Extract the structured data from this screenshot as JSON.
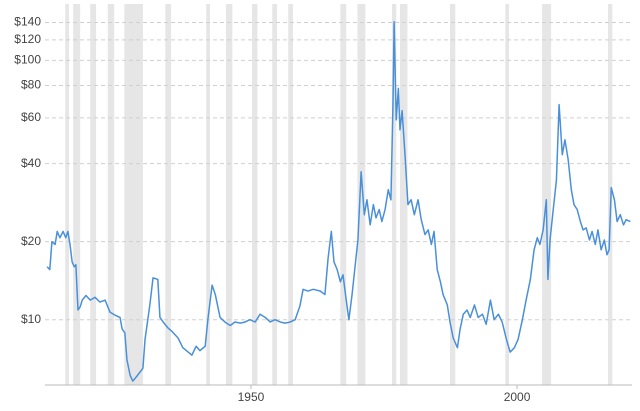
{
  "chart_data": {
    "type": "line",
    "color": "#4a90d9",
    "band_color": "#e6e6e6",
    "log_y": true,
    "grid": true,
    "xlim": [
      1911.3,
      2021.6
    ],
    "xticks": [
      1950,
      2000
    ],
    "ylim": [
      5.6,
      165
    ],
    "yticks": [
      {
        "value": 10,
        "label": "$10"
      },
      {
        "value": 20,
        "label": "$20"
      },
      {
        "value": 40,
        "label": "$40"
      },
      {
        "value": 60,
        "label": "$60"
      },
      {
        "value": 80,
        "label": "$80"
      },
      {
        "value": 100,
        "label": "$100"
      },
      {
        "value": 120,
        "label": "$120"
      },
      {
        "value": 140,
        "label": "$140"
      }
    ],
    "recessions": [
      [
        1915.1,
        1915.8
      ],
      [
        1916.6,
        1917.9
      ],
      [
        1919.8,
        1920.9
      ],
      [
        1923.1,
        1924.3
      ],
      [
        1926.2,
        1929.7
      ],
      [
        1933.9,
        1935.0
      ],
      [
        1941.6,
        1942.3
      ],
      [
        1945.3,
        1946.5
      ],
      [
        1950.2,
        1951.2
      ],
      [
        1954.0,
        1954.9
      ],
      [
        1957.0,
        1957.9
      ],
      [
        1966.8,
        1967.9
      ],
      [
        1970.0,
        1971.5
      ],
      [
        1976.5,
        1977.3
      ],
      [
        1978.0,
        1979.4
      ],
      [
        1987.4,
        1988.4
      ],
      [
        1997.8,
        1998.5
      ],
      [
        2004.7,
        2006.4
      ],
      [
        2017.1,
        2017.9
      ]
    ],
    "x": [
      1911.7,
      1912.2,
      1912.6,
      1913.2,
      1913.6,
      1914.1,
      1914.7,
      1915.2,
      1915.6,
      1916.0,
      1916.4,
      1916.8,
      1917.1,
      1917.5,
      1917.9,
      1918.3,
      1919.0,
      1919.8,
      1920.7,
      1921.6,
      1922.6,
      1923.5,
      1924.5,
      1925.4,
      1925.8,
      1926.3,
      1926.7,
      1927.3,
      1927.8,
      1928.4,
      1929.2,
      1929.7,
      1930.1,
      1931.0,
      1931.6,
      1932.5,
      1932.9,
      1933.5,
      1934.4,
      1935.2,
      1936.3,
      1937.2,
      1938.2,
      1938.9,
      1939.7,
      1940.4,
      1941.4,
      1941.9,
      1942.7,
      1943.3,
      1944.2,
      1945.1,
      1946.1,
      1947.0,
      1948.0,
      1948.9,
      1949.8,
      1950.8,
      1951.7,
      1952.7,
      1953.6,
      1954.5,
      1955.5,
      1956.4,
      1957.4,
      1958.3,
      1959.2,
      1959.8,
      1960.7,
      1961.7,
      1963.0,
      1963.9,
      1964.5,
      1965.1,
      1965.6,
      1966.2,
      1966.8,
      1967.3,
      1967.9,
      1968.4,
      1969.0,
      1969.6,
      1970.1,
      1970.7,
      1971.3,
      1971.8,
      1972.4,
      1973.0,
      1973.5,
      1974.1,
      1974.6,
      1975.2,
      1975.8,
      1976.3,
      1976.7,
      1976.9,
      1977.3,
      1977.7,
      1978.0,
      1978.4,
      1979.0,
      1979.5,
      1980.1,
      1980.7,
      1981.4,
      1982.0,
      1982.7,
      1983.3,
      1983.9,
      1984.4,
      1985.0,
      1985.6,
      1986.1,
      1986.9,
      1987.4,
      1988.0,
      1988.8,
      1989.3,
      1989.9,
      1990.6,
      1991.2,
      1992.0,
      1992.7,
      1993.5,
      1994.2,
      1995.0,
      1995.7,
      1996.5,
      1997.2,
      1998.0,
      1998.7,
      1999.5,
      2000.2,
      2001.0,
      2001.7,
      2002.5,
      2003.2,
      2003.8,
      2004.3,
      2004.9,
      2005.5,
      2005.8,
      2006.2,
      2006.8,
      2007.4,
      2007.9,
      2008.5,
      2009.0,
      2009.6,
      2010.2,
      2010.7,
      2011.3,
      2011.9,
      2012.4,
      2013.0,
      2013.6,
      2014.1,
      2014.7,
      2015.2,
      2015.8,
      2016.4,
      2016.9,
      2017.3,
      2017.7,
      2018.3,
      2018.8,
      2019.4,
      2020.0,
      2020.5,
      2021.3
    ],
    "values": [
      16,
      15.6,
      20,
      19.5,
      21.9,
      20.7,
      21.9,
      20.7,
      21.9,
      19.5,
      16.7,
      16,
      16.3,
      10.9,
      11.2,
      11.9,
      12.4,
      11.9,
      12.2,
      11.7,
      11.9,
      10.7,
      10.4,
      10.2,
      9.2,
      8.9,
      7.0,
      6.1,
      5.8,
      6.0,
      6.3,
      6.5,
      8.4,
      11.4,
      14.5,
      14.3,
      10.2,
      9.8,
      9.3,
      9.0,
      8.5,
      7.8,
      7.5,
      7.3,
      7.9,
      7.6,
      7.9,
      10,
      13.6,
      12.5,
      10.2,
      9.8,
      9.5,
      9.8,
      9.7,
      9.8,
      10,
      9.8,
      10.5,
      10.2,
      9.8,
      10,
      9.8,
      9.7,
      9.8,
      10,
      11.3,
      13.1,
      12.9,
      13.1,
      12.9,
      12.5,
      17.3,
      21.9,
      16.7,
      15.6,
      14,
      14.9,
      11.9,
      10,
      12.5,
      16.3,
      20.3,
      37.2,
      25.4,
      29,
      23.2,
      27.8,
      24.7,
      26.6,
      23.9,
      26.6,
      31.7,
      29,
      70,
      141,
      59,
      78,
      54,
      64,
      41.5,
      27.8,
      29,
      25.4,
      29,
      24.3,
      21.3,
      22.2,
      19.5,
      21.9,
      15.6,
      14,
      12.5,
      11.4,
      9.8,
      8.5,
      7.8,
      9.2,
      10.5,
      10.9,
      10.2,
      11.4,
      10.2,
      10.5,
      9.6,
      11.9,
      10,
      10.5,
      9.8,
      8.4,
      7.5,
      7.8,
      8.4,
      10,
      11.9,
      14.3,
      18.6,
      20.7,
      19.5,
      22.2,
      29,
      14.3,
      20.3,
      26.6,
      34.6,
      67.5,
      43.3,
      49.4,
      41.5,
      31.7,
      27.8,
      26.6,
      23.9,
      22.2,
      22.6,
      20.3,
      21.9,
      19.5,
      22.2,
      18.6,
      20.3,
      17.8,
      18.6,
      32.3,
      29,
      23.9,
      25.4,
      23.2,
      24.3,
      23.9
    ]
  }
}
